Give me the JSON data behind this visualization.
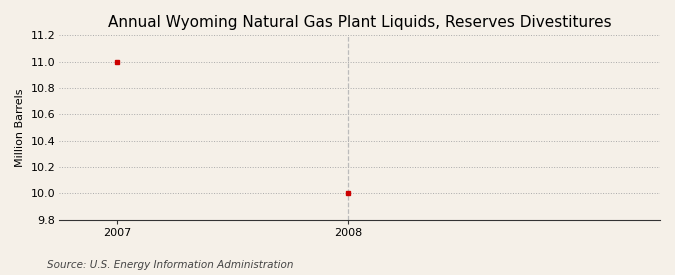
{
  "title": "Annual Wyoming Natural Gas Plant Liquids, Reserves Divestitures",
  "ylabel": "Million Barrels",
  "source_text": "Source: U.S. Energy Information Administration",
  "background_color": "#f5f0e8",
  "plot_background_color": "#f5f0e8",
  "data_x": [
    2007,
    2008
  ],
  "data_y": [
    11.0,
    10.0
  ],
  "marker_color": "#cc0000",
  "marker_size": 3,
  "xlim": [
    2006.75,
    2009.35
  ],
  "ylim": [
    9.8,
    11.2
  ],
  "yticks": [
    9.8,
    10.0,
    10.2,
    10.4,
    10.6,
    10.8,
    11.0,
    11.2
  ],
  "xticks": [
    2007,
    2008
  ],
  "grid_color": "#aaaaaa",
  "vline_x": 2008,
  "vline_color": "#bbbbbb",
  "title_fontsize": 11,
  "label_fontsize": 8,
  "tick_fontsize": 8,
  "source_fontsize": 7.5
}
